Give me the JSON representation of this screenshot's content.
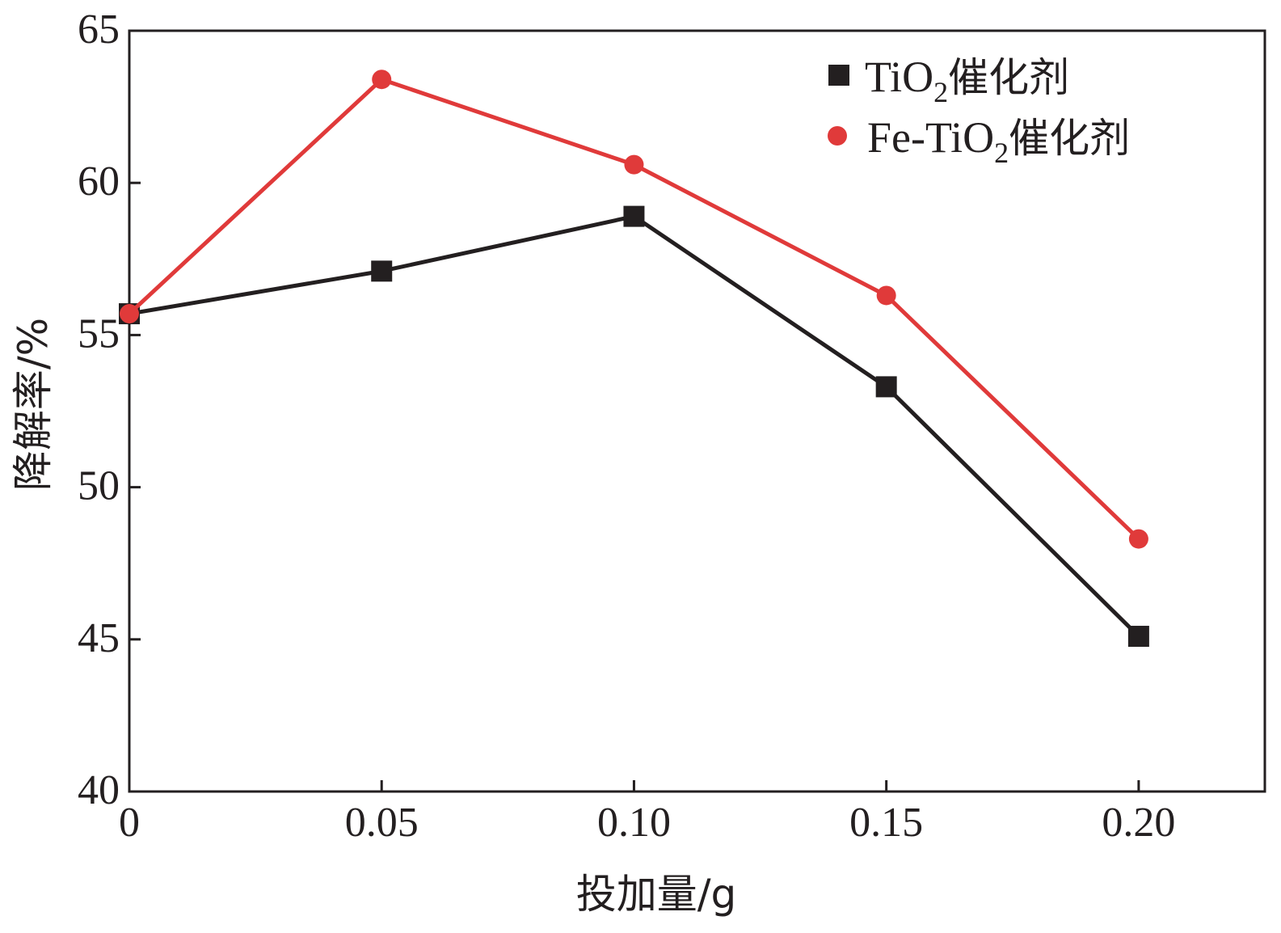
{
  "chart_data": {
    "type": "line",
    "title": "",
    "xlabel": "投加量/g",
    "ylabel": "降解率/%",
    "x": [
      0,
      0.05,
      0.1,
      0.15,
      0.2
    ],
    "xlim": [
      0,
      0.225
    ],
    "ylim": [
      40,
      65
    ],
    "x_ticks": [
      0,
      0.05,
      0.1,
      0.15,
      0.2
    ],
    "x_tick_labels": [
      "0",
      "0.05",
      "0.10",
      "0.15",
      "0.20"
    ],
    "y_ticks": [
      40,
      45,
      50,
      55,
      60,
      65
    ],
    "y_tick_labels": [
      "40",
      "45",
      "50",
      "55",
      "60",
      "65"
    ],
    "grid": false,
    "legend_position": "top-right",
    "series": [
      {
        "name": "TiO2催化剂",
        "legend": {
          "main": "TiO",
          "sub": "2",
          "suffix": "催化剂"
        },
        "values": [
          55.7,
          57.1,
          58.9,
          53.3,
          45.1
        ],
        "color": "#231f20",
        "marker": "square"
      },
      {
        "name": "Fe-TiO2催化剂",
        "legend": {
          "main": "Fe-TiO",
          "sub": "2",
          "suffix": "催化剂"
        },
        "values": [
          55.7,
          63.4,
          60.6,
          56.3,
          48.3
        ],
        "color": "#e03a3a",
        "marker": "circle"
      }
    ]
  }
}
